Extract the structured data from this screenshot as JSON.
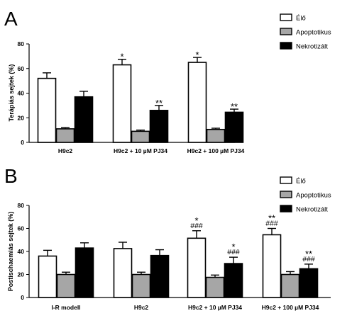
{
  "chart_data": [
    {
      "type": "bar",
      "panel": "A",
      "ylabel": "Terápiás sejtek (%)",
      "ylim": [
        0,
        80
      ],
      "yticks": [
        "0",
        "20",
        "40",
        "60",
        "80"
      ],
      "categories": [
        "H9c2",
        "H9c2 + 10 µM PJ34",
        "H9c2 + 100 µM PJ34"
      ],
      "legend_position": "top-right",
      "series": [
        {
          "name": "Élő",
          "color": "#ffffff",
          "values": [
            52,
            63,
            65
          ],
          "errors": [
            4.5,
            4.5,
            4
          ],
          "annotations": [
            [],
            [
              "*"
            ],
            [
              "*"
            ]
          ]
        },
        {
          "name": "Apoptotikus",
          "color": "#a6a6a6",
          "values": [
            11,
            9,
            10.5
          ],
          "errors": [
            1,
            1,
            1
          ],
          "annotations": [
            [],
            [],
            []
          ]
        },
        {
          "name": "Nekrotizált",
          "color": "#000000",
          "values": [
            37,
            26,
            24.5
          ],
          "errors": [
            4.5,
            4,
            2.5
          ],
          "annotations": [
            [],
            [
              "**"
            ],
            [
              "**"
            ]
          ]
        }
      ]
    },
    {
      "type": "bar",
      "panel": "B",
      "ylabel": "Postischaemiás sejtek (%)",
      "ylim": [
        0,
        80
      ],
      "yticks": [
        "0",
        "20",
        "40",
        "60",
        "80"
      ],
      "categories": [
        "I-R modell",
        "H9c2",
        "H9c2 + 10 µM PJ34",
        "H9c2 + 100 µM PJ34"
      ],
      "legend_position": "top-right",
      "series": [
        {
          "name": "Élő",
          "color": "#ffffff",
          "values": [
            36,
            42.5,
            51.5,
            54.5
          ],
          "errors": [
            5,
            5.5,
            6.5,
            5.5
          ],
          "annotations": [
            [],
            [],
            [
              "*",
              "###"
            ],
            [
              "**",
              "###"
            ]
          ]
        },
        {
          "name": "Apoptotikus",
          "color": "#a6a6a6",
          "values": [
            20,
            20,
            17.5,
            20
          ],
          "errors": [
            2,
            2,
            2,
            2.5
          ],
          "annotations": [
            [],
            [],
            [],
            []
          ]
        },
        {
          "name": "Nekrotizált",
          "color": "#000000",
          "values": [
            43,
            36.5,
            29.5,
            25
          ],
          "errors": [
            4.5,
            5,
            5.5,
            4
          ],
          "annotations": [
            [],
            [],
            [
              "*",
              "###"
            ],
            [
              "**",
              "###"
            ]
          ]
        }
      ]
    }
  ]
}
